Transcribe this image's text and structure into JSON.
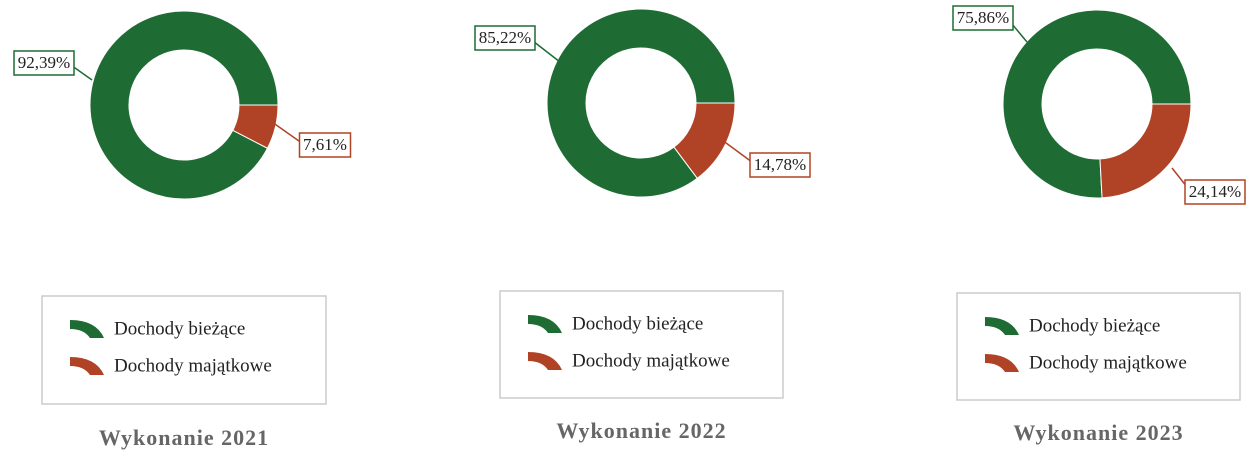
{
  "chart_data": [
    {
      "type": "pie",
      "title": "Wykonanie 2021",
      "categories": [
        "Dochody bieżące",
        "Dochody majątkowe"
      ],
      "values": [
        92.39,
        7.61
      ],
      "value_labels": [
        "92,39%",
        "7,61%"
      ],
      "colors": [
        "#1e6b34",
        "#b04326"
      ]
    },
    {
      "type": "pie",
      "title": "Wykonanie 2022",
      "categories": [
        "Dochody bieżące",
        "Dochody majątkowe"
      ],
      "values": [
        85.22,
        14.78
      ],
      "value_labels": [
        "85,22%",
        "14,78%"
      ],
      "colors": [
        "#1e6b34",
        "#b04326"
      ]
    },
    {
      "type": "pie",
      "title": "Wykonanie 2023",
      "categories": [
        "Dochody bieżące",
        "Dochody majątkowe"
      ],
      "values": [
        75.86,
        24.14
      ],
      "value_labels": [
        "75,86%",
        "24,14%"
      ],
      "colors": [
        "#1e6b34",
        "#b04326"
      ]
    }
  ]
}
